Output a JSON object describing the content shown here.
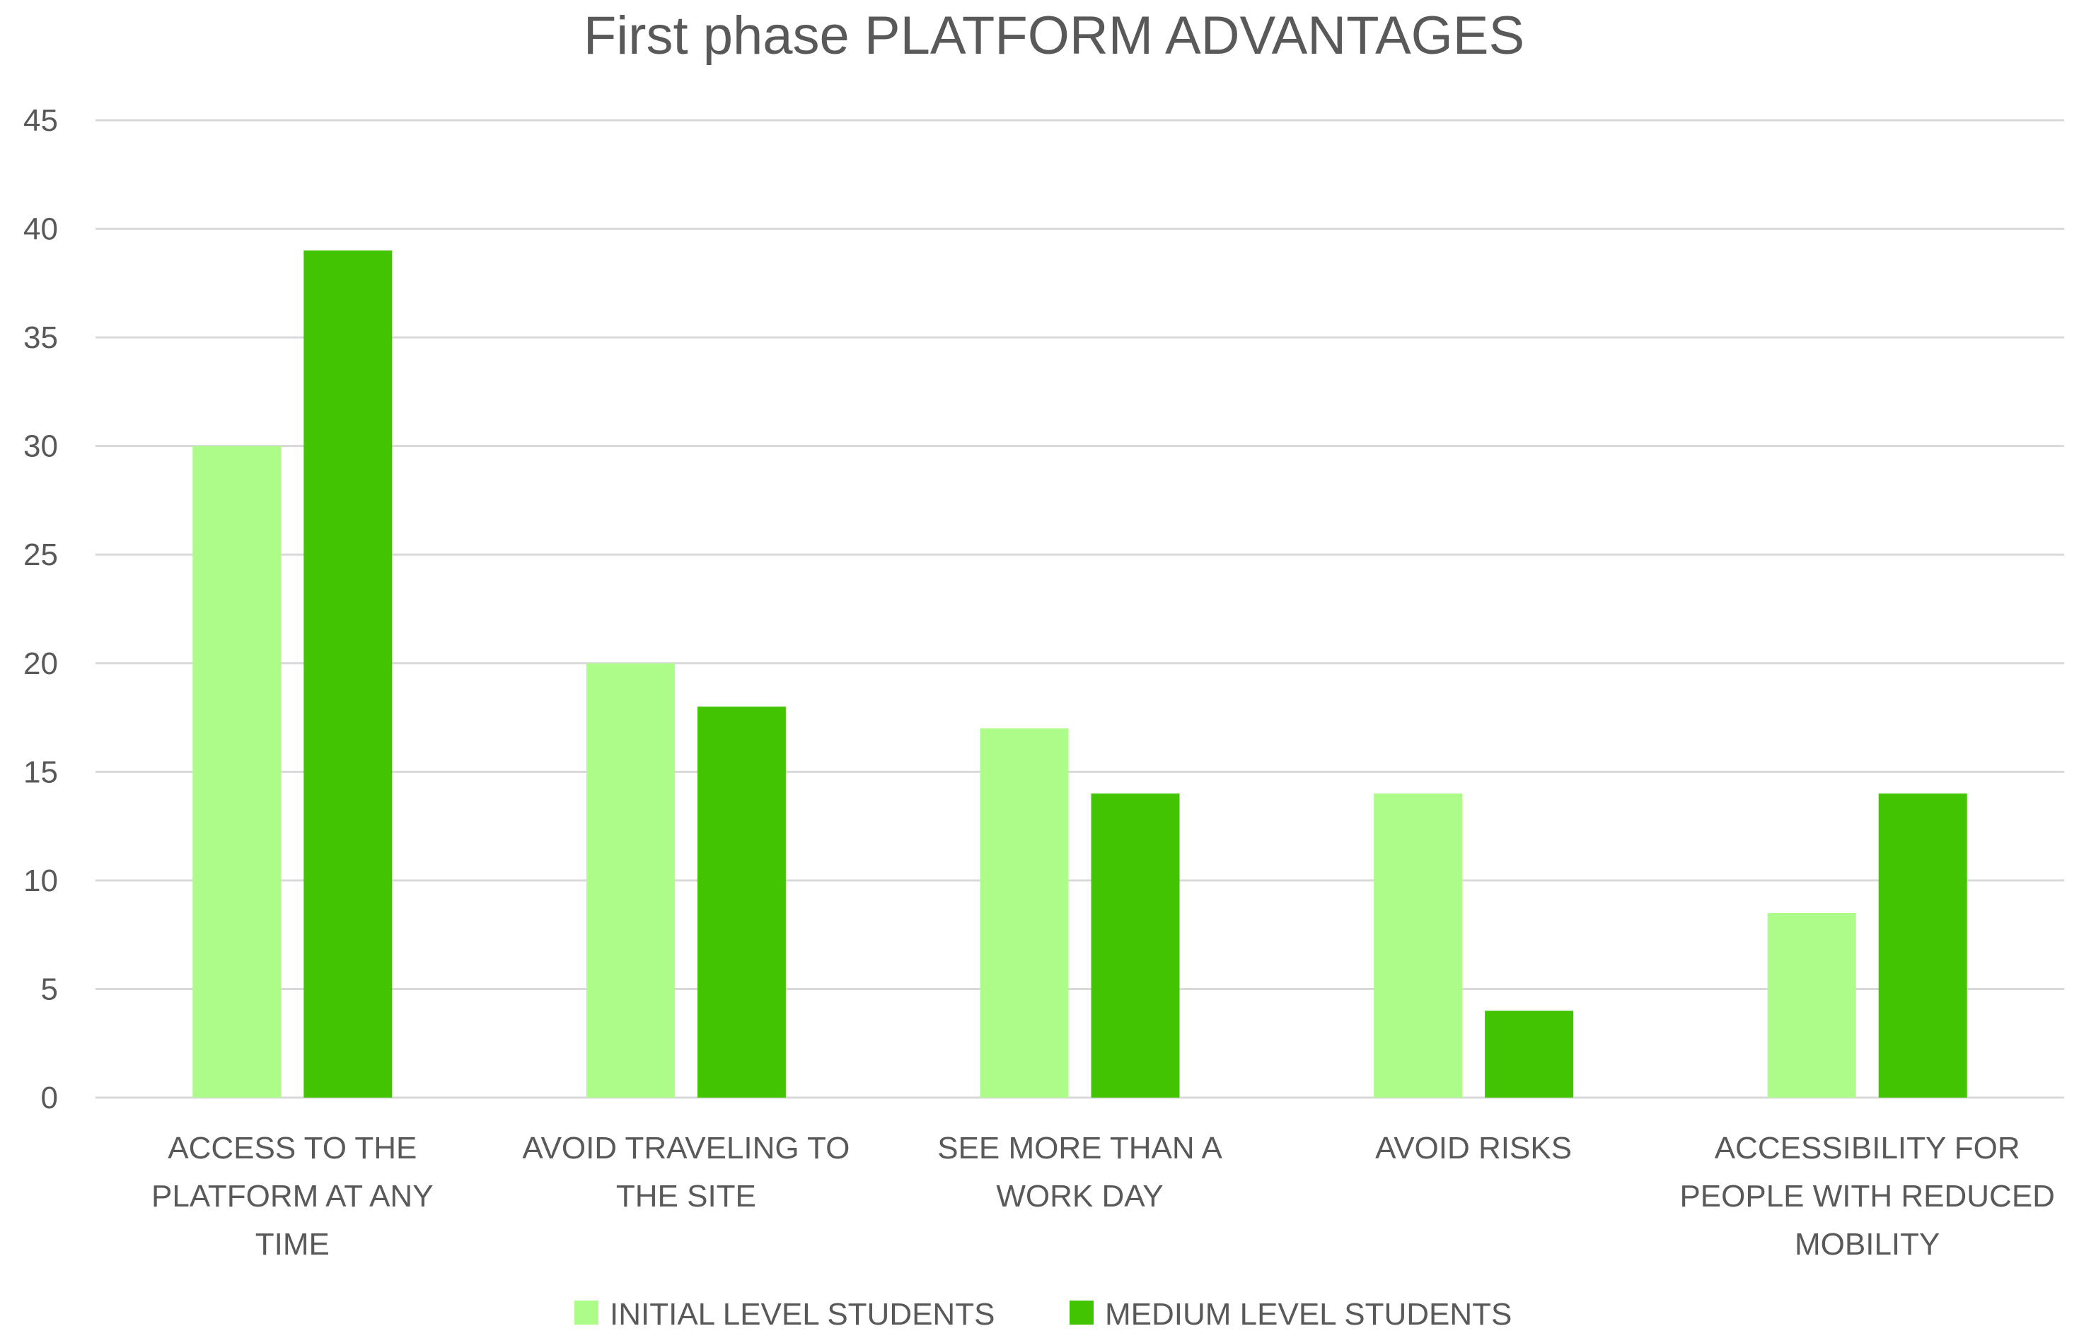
{
  "chart_data": {
    "type": "bar",
    "title": "First phase PLATFORM ADVANTAGES",
    "xlabel": "",
    "ylabel": "",
    "ylim": [
      0,
      45
    ],
    "yticks": [
      0,
      5,
      10,
      15,
      20,
      25,
      30,
      35,
      40,
      45
    ],
    "grid": true,
    "legend_position": "bottom",
    "categories": [
      [
        "ACCESS TO THE",
        "PLATFORM AT ANY",
        "TIME"
      ],
      [
        "AVOID TRAVELING TO",
        "THE SITE"
      ],
      [
        "SEE MORE THAN A",
        "WORK DAY"
      ],
      [
        "AVOID RISKS"
      ],
      [
        "ACCESSIBILITY FOR",
        "PEOPLE WITH REDUCED",
        "MOBILITY"
      ]
    ],
    "series": [
      {
        "name": "INITIAL LEVEL STUDENTS",
        "color": "#adfc89",
        "values": [
          30,
          20,
          17,
          14,
          8.5
        ]
      },
      {
        "name": "MEDIUM LEVEL STUDENTS",
        "color": "#43c403",
        "values": [
          39,
          18,
          14,
          4,
          14
        ]
      }
    ]
  }
}
